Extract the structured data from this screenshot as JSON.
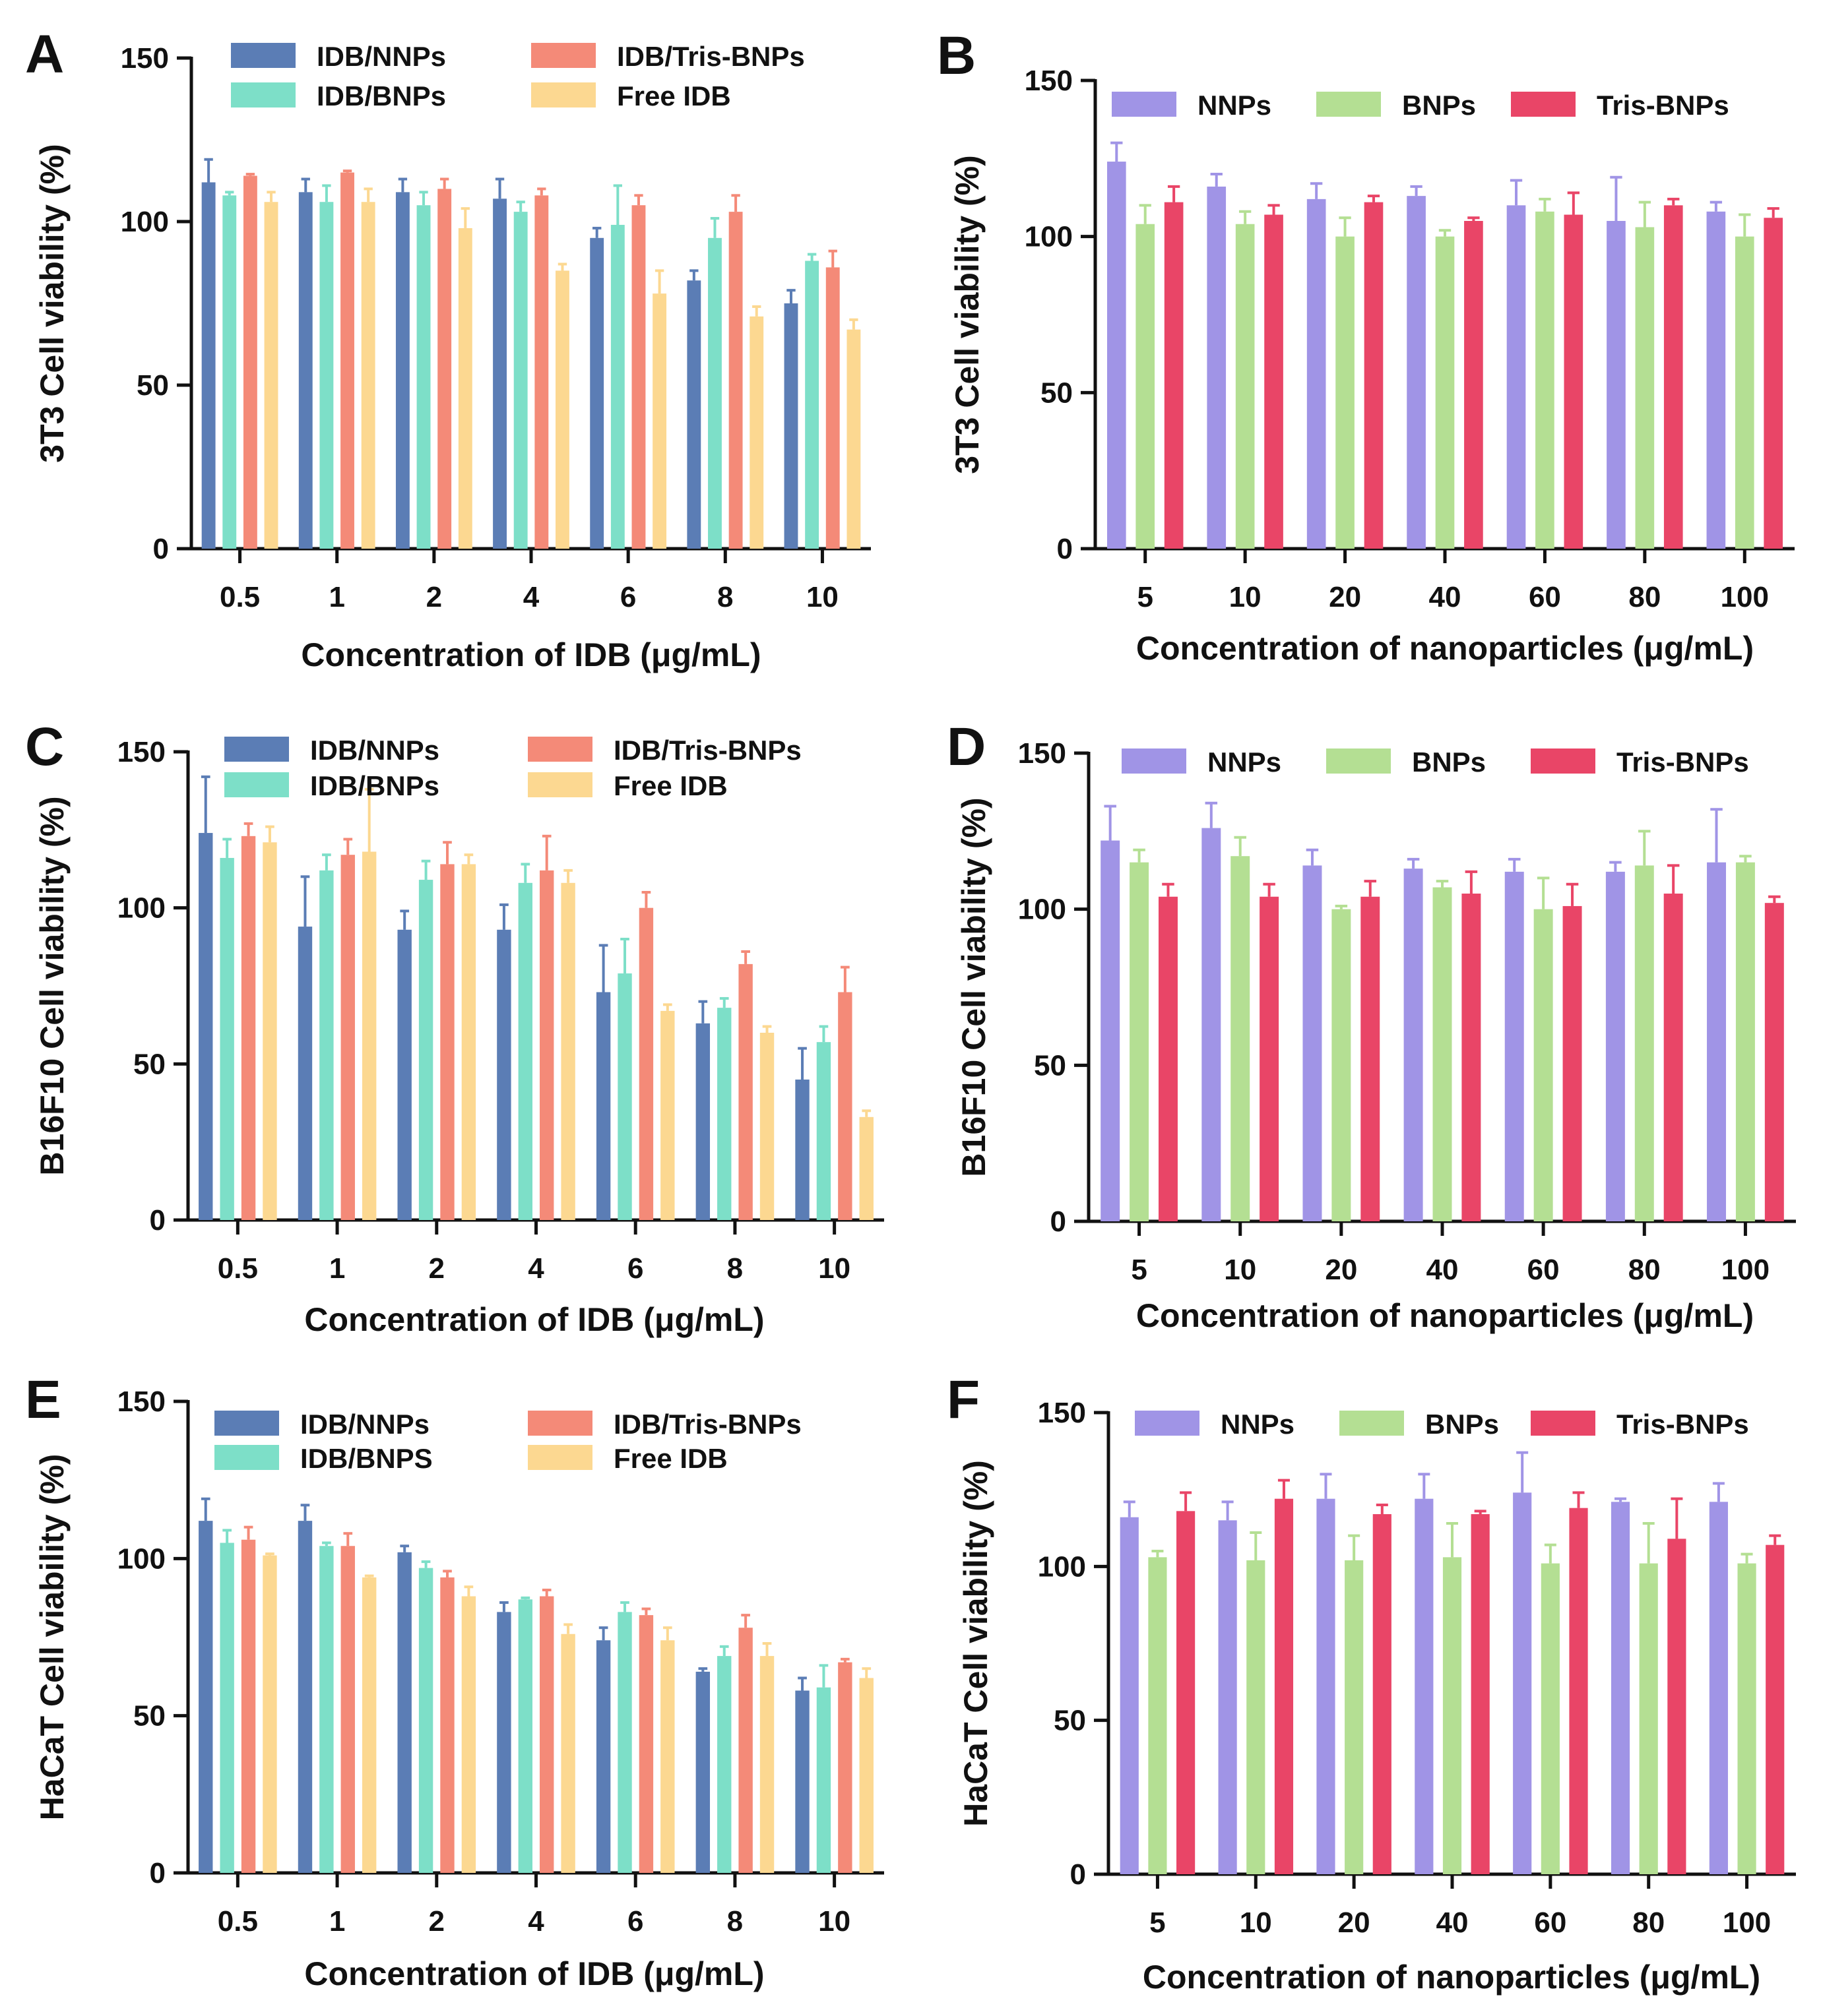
{
  "chart_data": [
    {
      "type": "bar",
      "panel": "A",
      "ylabel": "3T3 Cell viability (%)",
      "xlabel": "Concentration of IDB (μg/mL)",
      "ylim": [
        0,
        150
      ],
      "yticks": [
        0,
        50,
        100,
        150
      ],
      "categories": [
        "0.5",
        "1",
        "2",
        "4",
        "6",
        "8",
        "10"
      ],
      "series": [
        {
          "name": "IDB/NNPs",
          "color": "#5b7db5",
          "values": [
            112,
            109,
            109,
            107,
            95,
            82,
            75
          ],
          "errors": [
            7,
            4,
            4,
            6,
            3,
            3,
            4
          ]
        },
        {
          "name": "IDB/BNPs",
          "color": "#7ddfc8",
          "values": [
            108,
            106,
            105,
            103,
            99,
            95,
            88
          ],
          "errors": [
            1,
            5,
            4,
            3,
            12,
            6,
            2
          ]
        },
        {
          "name": "IDB/Tris-BNPs",
          "color": "#f48a78",
          "values": [
            114,
            115,
            110,
            108,
            105,
            103,
            86
          ],
          "errors": [
            0.5,
            0.5,
            3,
            2,
            3,
            5,
            5
          ]
        },
        {
          "name": "Free IDB",
          "color": "#fcd891",
          "values": [
            106,
            106,
            98,
            85,
            78,
            71,
            67
          ],
          "errors": [
            3,
            4,
            6,
            2,
            7,
            3,
            3
          ]
        }
      ],
      "legend_layout": "two-column top"
    },
    {
      "type": "bar",
      "panel": "B",
      "ylabel": "3T3 Cell viability (%)",
      "xlabel": "Concentration of nanoparticles (μg/mL)",
      "ylim": [
        0,
        150
      ],
      "yticks": [
        0,
        50,
        100,
        150
      ],
      "categories": [
        "5",
        "10",
        "20",
        "40",
        "60",
        "80",
        "100"
      ],
      "series": [
        {
          "name": "NNPs",
          "color": "#a094e6",
          "values": [
            124,
            116,
            112,
            113,
            110,
            105,
            108
          ],
          "errors": [
            6,
            4,
            5,
            3,
            8,
            14,
            3
          ]
        },
        {
          "name": "BNPs",
          "color": "#b4df93",
          "values": [
            104,
            104,
            100,
            100,
            108,
            103,
            100
          ],
          "errors": [
            6,
            4,
            6,
            2,
            4,
            8,
            7
          ]
        },
        {
          "name": "Tris-BNPs",
          "color": "#e94567",
          "values": [
            111,
            107,
            111,
            105,
            107,
            110,
            106
          ],
          "errors": [
            5,
            3,
            2,
            1,
            7,
            2,
            3
          ]
        }
      ],
      "legend_layout": "one-row top"
    },
    {
      "type": "bar",
      "panel": "C",
      "ylabel": "B16F10 Cell viability (%)",
      "xlabel": "Concentration of IDB (μg/mL)",
      "ylim": [
        0,
        150
      ],
      "yticks": [
        0,
        50,
        100,
        150
      ],
      "categories": [
        "0.5",
        "1",
        "2",
        "4",
        "6",
        "8",
        "10"
      ],
      "series": [
        {
          "name": "IDB/NNPs",
          "color": "#5b7db5",
          "values": [
            124,
            94,
            93,
            93,
            73,
            63,
            45
          ],
          "errors": [
            18,
            16,
            6,
            8,
            15,
            7,
            10
          ]
        },
        {
          "name": "IDB/BNPs",
          "color": "#7ddfc8",
          "values": [
            116,
            112,
            109,
            108,
            79,
            68,
            57
          ],
          "errors": [
            6,
            5,
            6,
            6,
            11,
            3,
            5
          ]
        },
        {
          "name": "IDB/Tris-BNPs",
          "color": "#f48a78",
          "values": [
            123,
            117,
            114,
            112,
            100,
            82,
            73
          ],
          "errors": [
            4,
            5,
            7,
            11,
            5,
            4,
            8
          ]
        },
        {
          "name": "Free IDB",
          "color": "#fcd891",
          "values": [
            121,
            118,
            114,
            108,
            67,
            60,
            33
          ],
          "errors": [
            5,
            20,
            3,
            4,
            2,
            2,
            2
          ]
        }
      ],
      "legend_layout": "two-column top"
    },
    {
      "type": "bar",
      "panel": "D",
      "ylabel": "B16F10 Cell viability (%)",
      "xlabel": "Concentration of nanoparticles (μg/mL)",
      "ylim": [
        0,
        150
      ],
      "yticks": [
        0,
        50,
        100,
        150
      ],
      "categories": [
        "5",
        "10",
        "20",
        "40",
        "60",
        "80",
        "100"
      ],
      "series": [
        {
          "name": "NNPs",
          "color": "#a094e6",
          "values": [
            122,
            126,
            114,
            113,
            112,
            112,
            115
          ],
          "errors": [
            11,
            8,
            5,
            3,
            4,
            3,
            17
          ]
        },
        {
          "name": "BNPs",
          "color": "#b4df93",
          "values": [
            115,
            117,
            100,
            107,
            100,
            114,
            115
          ],
          "errors": [
            4,
            6,
            1,
            2,
            10,
            11,
            2
          ]
        },
        {
          "name": "Tris-BNPs",
          "color": "#e94567",
          "values": [
            104,
            104,
            104,
            105,
            101,
            105,
            102
          ],
          "errors": [
            4,
            4,
            5,
            7,
            7,
            9,
            2
          ]
        }
      ],
      "legend_layout": "one-row top"
    },
    {
      "type": "bar",
      "panel": "E",
      "ylabel": "HaCaT Cell viability (%)",
      "xlabel": "Concentration of IDB (μg/mL)",
      "ylim": [
        0,
        150
      ],
      "yticks": [
        0,
        50,
        100,
        150
      ],
      "categories": [
        "0.5",
        "1",
        "2",
        "4",
        "6",
        "8",
        "10"
      ],
      "series": [
        {
          "name": "IDB/NNPs",
          "color": "#5b7db5",
          "values": [
            112,
            112,
            102,
            83,
            74,
            64,
            58
          ],
          "errors": [
            7,
            5,
            2,
            3,
            4,
            1,
            4
          ]
        },
        {
          "name": "IDB/BNPS",
          "color": "#7ddfc8",
          "values": [
            105,
            104,
            97,
            87,
            83,
            69,
            59
          ],
          "errors": [
            4,
            1,
            2,
            0.5,
            3,
            3,
            7
          ]
        },
        {
          "name": "IDB/Tris-BNPs",
          "color": "#f48a78",
          "values": [
            106,
            104,
            94,
            88,
            82,
            78,
            67
          ],
          "errors": [
            4,
            4,
            2,
            2,
            2,
            4,
            1
          ]
        },
        {
          "name": "Free IDB",
          "color": "#fcd891",
          "values": [
            101,
            94,
            88,
            76,
            74,
            69,
            62
          ],
          "errors": [
            0.5,
            0.5,
            3,
            3,
            4,
            4,
            3
          ]
        }
      ],
      "legend_layout": "two-column top"
    },
    {
      "type": "bar",
      "panel": "F",
      "ylabel": "HaCaT Cell viability (%)",
      "xlabel": "Concentration of nanoparticles (μg/mL)",
      "ylim": [
        0,
        150
      ],
      "yticks": [
        0,
        50,
        100,
        150
      ],
      "categories": [
        "5",
        "10",
        "20",
        "40",
        "60",
        "80",
        "100"
      ],
      "series": [
        {
          "name": "NNPs",
          "color": "#a094e6",
          "values": [
            116,
            115,
            122,
            122,
            124,
            121,
            121
          ],
          "errors": [
            5,
            6,
            8,
            8,
            13,
            1,
            6
          ]
        },
        {
          "name": "BNPs",
          "color": "#b4df93",
          "values": [
            103,
            102,
            102,
            103,
            101,
            101,
            101
          ],
          "errors": [
            2,
            9,
            8,
            11,
            6,
            13,
            3
          ]
        },
        {
          "name": "Tris-BNPs",
          "color": "#e94567",
          "values": [
            118,
            122,
            117,
            117,
            119,
            109,
            107
          ],
          "errors": [
            6,
            6,
            3,
            1,
            5,
            13,
            3
          ]
        }
      ],
      "legend_layout": "one-row top"
    }
  ]
}
